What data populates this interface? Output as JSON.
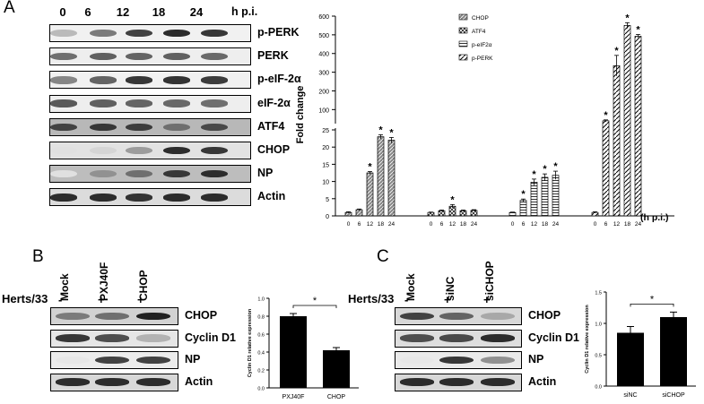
{
  "panels": {
    "A": {
      "letter": "A",
      "lanes": [
        "0",
        "6",
        "12",
        "18",
        "24"
      ],
      "time_unit": "h p.i.",
      "bands": [
        {
          "label": "p-PERK",
          "bg": "#f1f1f1",
          "intensities": [
            0.22,
            0.5,
            0.75,
            0.85,
            0.8
          ]
        },
        {
          "label": "PERK",
          "bg": "#eeeeee",
          "intensities": [
            0.55,
            0.62,
            0.6,
            0.62,
            0.58
          ]
        },
        {
          "label": "p-eIF-2α",
          "bg": "#f1f1f1",
          "intensities": [
            0.45,
            0.6,
            0.8,
            0.82,
            0.78
          ]
        },
        {
          "label": "eIF-2α",
          "bg": "#eeeeee",
          "intensities": [
            0.65,
            0.62,
            0.6,
            0.58,
            0.55
          ]
        },
        {
          "label": "ATF4",
          "bg": "#b8b8b8",
          "intensities": [
            0.75,
            0.8,
            0.78,
            0.55,
            0.72
          ]
        },
        {
          "label": "CHOP",
          "bg": "#e2e2e2",
          "intensities": [
            0.05,
            0.1,
            0.35,
            0.85,
            0.8
          ]
        },
        {
          "label": "NP",
          "bg": "#bdbdbd",
          "intensities": [
            0.05,
            0.4,
            0.55,
            0.8,
            0.85
          ]
        },
        {
          "label": "Actin",
          "bg": "#dcdcdc",
          "intensities": [
            0.85,
            0.85,
            0.82,
            0.85,
            0.85
          ]
        }
      ]
    },
    "B": {
      "letter": "B",
      "row_label": "Herts/33",
      "lanes": [
        "Mock",
        "PXJ40F",
        "CHOP"
      ],
      "signs": [
        "-",
        "+",
        "+"
      ],
      "bands": [
        {
          "label": "CHOP",
          "bg": "#d2d2d2",
          "intensities": [
            0.5,
            0.55,
            0.9
          ]
        },
        {
          "label": "Cyclin D1",
          "bg": "#e6e6e6",
          "intensities": [
            0.8,
            0.7,
            0.25
          ]
        },
        {
          "label": "NP",
          "bg": "#ececec",
          "intensities": [
            0.02,
            0.75,
            0.75
          ]
        },
        {
          "label": "Actin",
          "bg": "#d8d8d8",
          "intensities": [
            0.85,
            0.85,
            0.85
          ]
        }
      ]
    },
    "C": {
      "letter": "C",
      "row_label": "Herts/33",
      "lanes": [
        "Mock",
        "siNC",
        "siCHOP"
      ],
      "signs": [
        "-",
        "+",
        "+"
      ],
      "bands": [
        {
          "label": "CHOP",
          "bg": "#d8d8d8",
          "intensities": [
            0.75,
            0.6,
            0.3
          ]
        },
        {
          "label": "Cyclin D1",
          "bg": "#dedede",
          "intensities": [
            0.7,
            0.72,
            0.85
          ]
        },
        {
          "label": "NP",
          "bg": "#eaeaea",
          "intensities": [
            0.02,
            0.8,
            0.4
          ]
        },
        {
          "label": "Actin",
          "bg": "#d8d8d8",
          "intensities": [
            0.85,
            0.85,
            0.85
          ]
        }
      ]
    }
  },
  "chart_data": [
    {
      "type": "bar",
      "ylabel": "Fold change",
      "xlabel": "(h p.i.)",
      "x_ticks": [
        "0",
        "6",
        "12",
        "18",
        "24"
      ],
      "legend": [
        "CHOP",
        "ATF4",
        "p-eIF2α",
        "p-PERK"
      ],
      "legend_placement": "top-center",
      "y_ticks_lower": [
        0,
        5,
        10,
        15,
        20,
        25
      ],
      "y_ticks_upper": [
        100,
        200,
        300,
        400,
        500,
        600
      ],
      "ylim_lower": [
        0,
        25
      ],
      "ylim_upper": [
        25,
        600
      ],
      "broken_axis": true,
      "series": [
        {
          "values": [
            1,
            1.8,
            12.5,
            23,
            22
          ],
          "errors": [
            0.2,
            0.2,
            0.4,
            0.6,
            0.8
          ],
          "significant": [
            false,
            false,
            true,
            true,
            true
          ]
        },
        {
          "values": [
            1,
            1.5,
            2.8,
            1.5,
            1.6
          ],
          "errors": [
            0.1,
            0.2,
            0.5,
            0.2,
            0.2
          ],
          "significant": [
            false,
            false,
            true,
            false,
            false
          ]
        },
        {
          "values": [
            1,
            4.5,
            9.8,
            11.2,
            11.8
          ],
          "errors": [
            0.1,
            0.4,
            0.9,
            1,
            1.2
          ],
          "significant": [
            false,
            true,
            true,
            true,
            true
          ]
        },
        {
          "values": [
            1,
            40,
            335,
            550,
            492
          ],
          "errors": [
            0.2,
            5,
            55,
            15,
            10
          ],
          "significant": [
            false,
            true,
            true,
            true,
            true
          ]
        }
      ]
    },
    {
      "type": "bar",
      "ylabel": "Cyclin D1 relative expression",
      "categories": [
        "PXJ40F",
        "CHOP"
      ],
      "values": [
        0.8,
        0.42
      ],
      "errors": [
        0.03,
        0.03
      ],
      "ylim": [
        0,
        1.0
      ],
      "y_ticks": [
        "0.0",
        "0.2",
        "0.4",
        "0.6",
        "0.8",
        "1.0"
      ],
      "significance": "*"
    },
    {
      "type": "bar",
      "ylabel": "Cyclin D1 relative expression",
      "categories": [
        "siNC",
        "siCHOP"
      ],
      "values": [
        0.85,
        1.1
      ],
      "errors": [
        0.1,
        0.08
      ],
      "ylim": [
        0,
        1.5
      ],
      "y_ticks": [
        "0.0",
        "0.5",
        "1.0",
        "1.5"
      ],
      "significance": "*"
    }
  ]
}
